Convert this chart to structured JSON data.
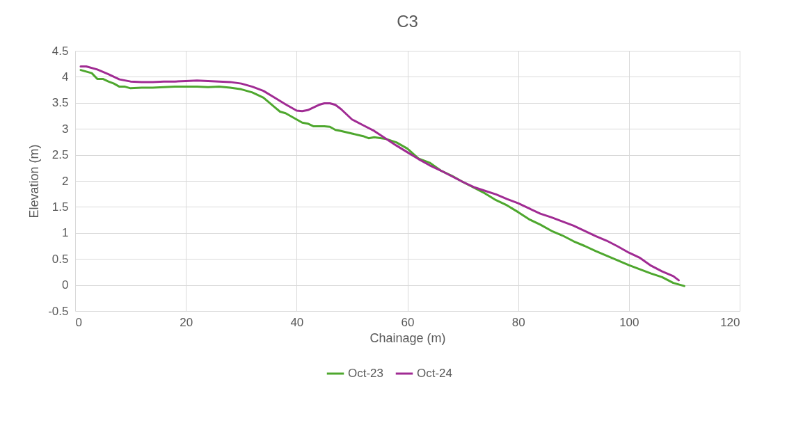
{
  "chart_data": {
    "type": "line",
    "title": "C3",
    "xlabel": "Chainage (m)",
    "ylabel": "Elevation (m)",
    "xlim": [
      0,
      120
    ],
    "xticks": [
      0,
      20,
      40,
      60,
      80,
      100,
      120
    ],
    "ylim": [
      -0.5,
      4.5
    ],
    "yticks": [
      -0.5,
      0,
      0.5,
      1,
      1.5,
      2,
      2.5,
      3,
      3.5,
      4,
      4.5
    ],
    "grid": true,
    "legend": "bottom",
    "marker": "none",
    "line_style": "solid",
    "series": [
      {
        "name": "Oct-23",
        "color": "#4ea72e",
        "x": [
          1,
          2,
          3,
          4,
          5,
          6,
          7,
          8,
          9,
          10,
          12,
          14,
          16,
          18,
          20,
          22,
          24,
          26,
          28,
          30,
          32,
          34,
          36,
          37,
          38,
          40,
          41,
          42,
          43,
          45,
          46,
          47,
          48,
          50,
          52,
          53,
          54,
          56,
          58,
          60,
          62,
          64,
          66,
          68,
          70,
          72,
          74,
          76,
          78,
          80,
          82,
          84,
          86,
          88,
          90,
          92,
          94,
          96,
          98,
          100,
          102,
          104,
          106,
          108,
          110
        ],
        "values": [
          4.13,
          4.1,
          4.07,
          3.96,
          3.96,
          3.91,
          3.87,
          3.81,
          3.81,
          3.78,
          3.79,
          3.79,
          3.8,
          3.81,
          3.81,
          3.81,
          3.8,
          3.81,
          3.79,
          3.76,
          3.7,
          3.6,
          3.42,
          3.33,
          3.3,
          3.18,
          3.12,
          3.1,
          3.05,
          3.05,
          3.04,
          2.98,
          2.96,
          2.91,
          2.86,
          2.82,
          2.84,
          2.81,
          2.74,
          2.62,
          2.43,
          2.35,
          2.2,
          2.1,
          1.98,
          1.87,
          1.76,
          1.63,
          1.53,
          1.4,
          1.26,
          1.16,
          1.04,
          0.95,
          0.84,
          0.75,
          0.65,
          0.56,
          0.47,
          0.38,
          0.3,
          0.22,
          0.15,
          0.04,
          -0.02
        ]
      },
      {
        "name": "Oct-24",
        "color": "#a02b93",
        "x": [
          1,
          2,
          4,
          6,
          8,
          10,
          12,
          14,
          16,
          18,
          20,
          22,
          24,
          26,
          28,
          30,
          32,
          34,
          36,
          38,
          40,
          41,
          42,
          44,
          45,
          46,
          47,
          48,
          49,
          50,
          52,
          54,
          56,
          58,
          60,
          62,
          64,
          66,
          68,
          70,
          72,
          74,
          76,
          78,
          80,
          82,
          84,
          86,
          88,
          90,
          92,
          94,
          96,
          98,
          100,
          102,
          104,
          106,
          108,
          109
        ],
        "values": [
          4.2,
          4.2,
          4.14,
          4.05,
          3.95,
          3.91,
          3.9,
          3.9,
          3.91,
          3.91,
          3.92,
          3.93,
          3.92,
          3.91,
          3.9,
          3.87,
          3.81,
          3.73,
          3.6,
          3.47,
          3.35,
          3.34,
          3.36,
          3.46,
          3.49,
          3.49,
          3.46,
          3.38,
          3.28,
          3.18,
          3.07,
          2.96,
          2.82,
          2.68,
          2.55,
          2.42,
          2.3,
          2.2,
          2.09,
          1.98,
          1.88,
          1.81,
          1.74,
          1.65,
          1.57,
          1.47,
          1.37,
          1.3,
          1.22,
          1.14,
          1.04,
          0.94,
          0.85,
          0.74,
          0.62,
          0.52,
          0.37,
          0.26,
          0.17,
          0.09
        ]
      }
    ]
  }
}
